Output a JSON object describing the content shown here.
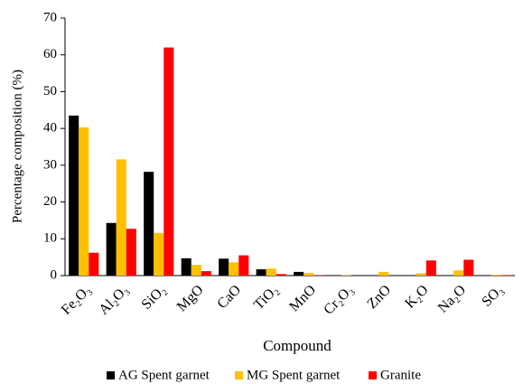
{
  "chart_data": {
    "type": "bar",
    "x_label": "Compound",
    "y_label": "Percentage composition (%)",
    "categories": [
      "Fe₂O₃",
      "Al₂O₃",
      "SiO₂",
      "MgO",
      "CaO",
      "TiO₂",
      "MnO",
      "Cr₂O₃",
      "ZnO",
      "K₂O",
      "Na₂O",
      "SO₃"
    ],
    "series": [
      {
        "name": "AG Spent garnet",
        "color": "#000000",
        "values": [
          43.5,
          14.3,
          28.2,
          4.7,
          4.6,
          1.7,
          1.0,
          0.1,
          0.1,
          0.1,
          0.1,
          0.1
        ]
      },
      {
        "name": "MG Spent garnet",
        "color": "#ffc000",
        "values": [
          40.3,
          31.6,
          11.6,
          2.9,
          3.6,
          1.9,
          0.7,
          0.1,
          1.0,
          0.6,
          1.4,
          0.2
        ]
      },
      {
        "name": "Granite",
        "color": "#ff0000",
        "values": [
          6.2,
          12.7,
          62.0,
          1.2,
          5.5,
          0.4,
          0.1,
          0,
          0,
          4.1,
          4.3,
          0.1
        ]
      }
    ],
    "ylim": [
      0,
      70
    ],
    "yticks": [
      0,
      10,
      20,
      30,
      40,
      50,
      60,
      70
    ],
    "grid": false
  }
}
